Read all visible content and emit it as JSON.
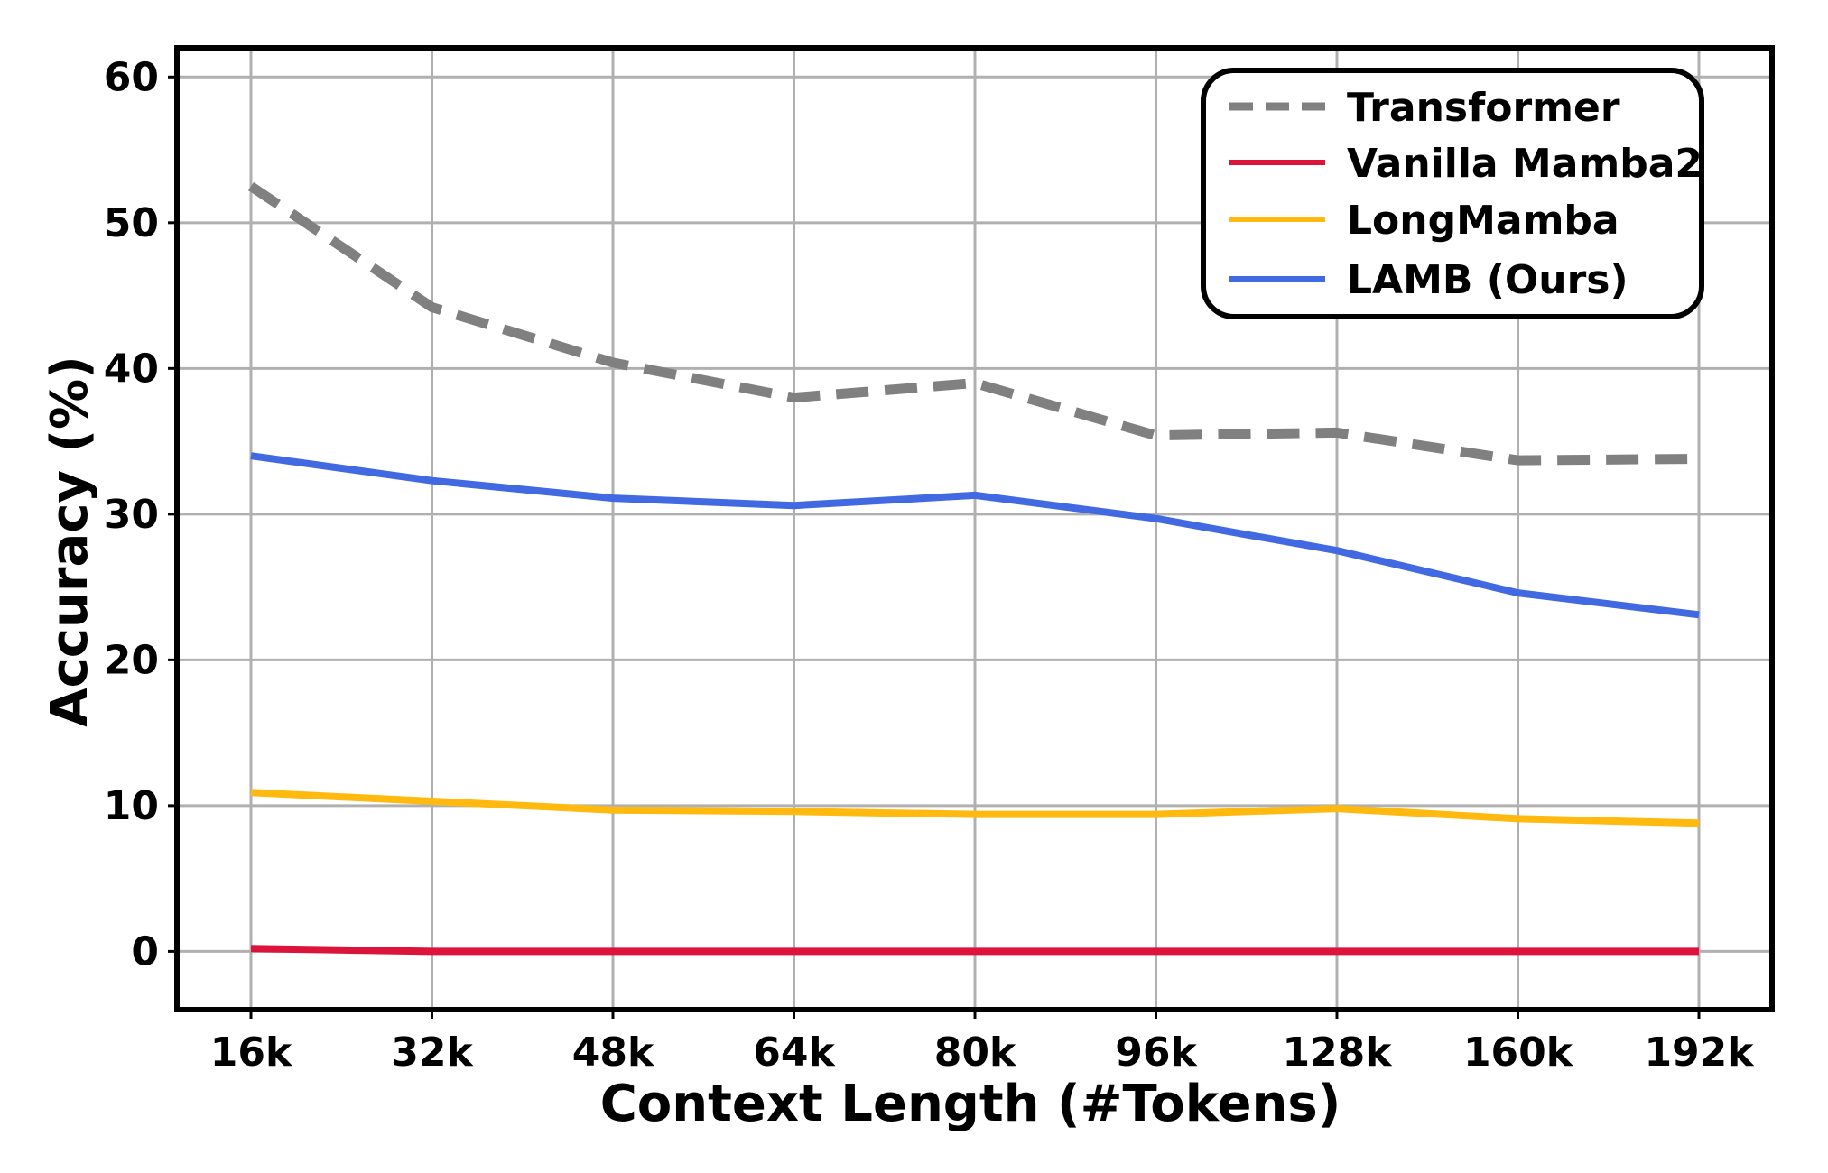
{
  "chart_data": {
    "type": "line",
    "title": "",
    "xlabel": "Context Length (#Tokens)",
    "ylabel": "Accuracy (%)",
    "categories": [
      "16k",
      "32k",
      "48k",
      "64k",
      "80k",
      "96k",
      "128k",
      "160k",
      "192k"
    ],
    "y_ticks": [
      "0",
      "10",
      "20",
      "30",
      "40",
      "50",
      "60"
    ],
    "ylim": [
      -4,
      62
    ],
    "grid": true,
    "legend_position": "top-right",
    "series": [
      {
        "name": "Transformer",
        "color": "#808080",
        "style": "dashed",
        "values": [
          52.5,
          44.2,
          40.4,
          38.0,
          39.0,
          35.4,
          35.6,
          33.7,
          33.8
        ]
      },
      {
        "name": "Vanilla Mamba2",
        "color": "#dc143c",
        "style": "solid",
        "values": [
          0.2,
          0.0,
          0.0,
          0.0,
          0.0,
          0.0,
          0.0,
          0.0,
          0.0
        ]
      },
      {
        "name": "LongMamba",
        "color": "#ffb90f",
        "style": "solid",
        "values": [
          10.9,
          10.3,
          9.7,
          9.6,
          9.4,
          9.4,
          9.8,
          9.1,
          8.8
        ]
      },
      {
        "name": "LAMB (Ours)",
        "color": "#4169e1",
        "style": "solid",
        "values": [
          34.0,
          32.3,
          31.1,
          30.6,
          31.3,
          29.7,
          27.5,
          24.6,
          23.1
        ]
      }
    ]
  }
}
